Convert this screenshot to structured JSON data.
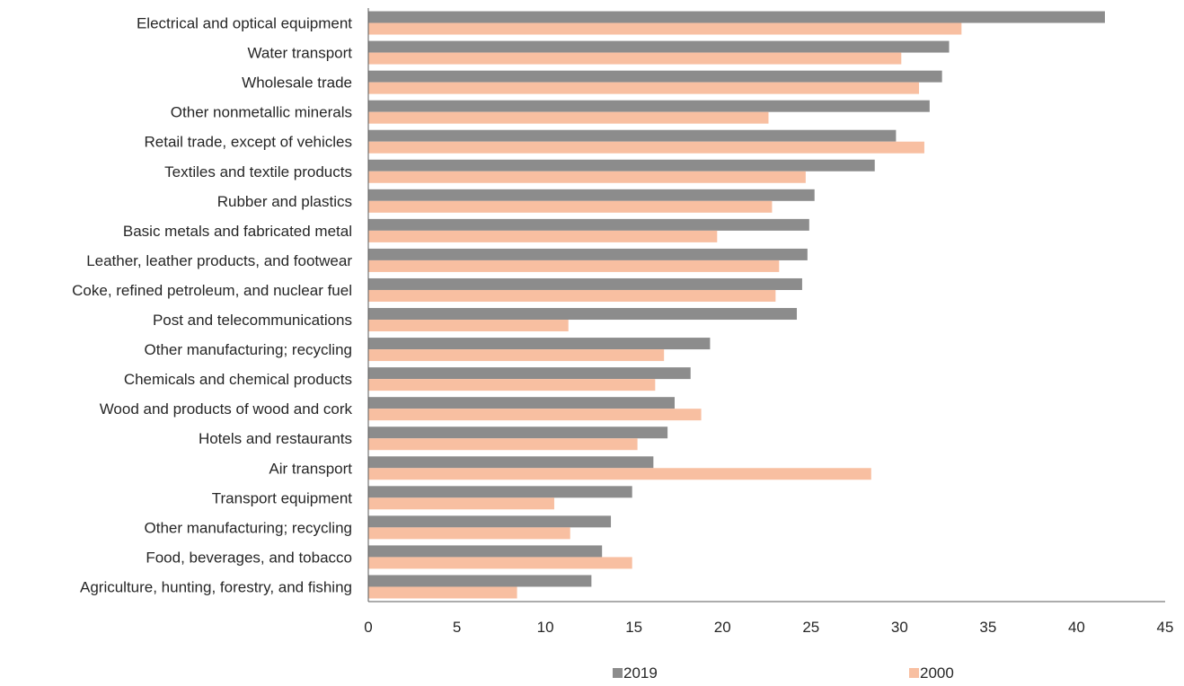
{
  "chart_data": {
    "type": "bar",
    "orientation": "horizontal",
    "categories": [
      "Electrical and optical equipment",
      "Water transport",
      "Wholesale trade",
      "Other nonmetallic minerals",
      "Retail trade, except of vehicles",
      "Textiles and textile products",
      "Rubber and plastics",
      "Basic metals and fabricated metal",
      "Leather, leather products, and footwear",
      "Coke, refined petroleum, and nuclear fuel",
      "Post and telecommunications",
      "Other manufacturing; recycling",
      "Chemicals and chemical products",
      "Wood and products of wood and cork",
      "Hotels and restaurants",
      "Air transport",
      "Transport equipment",
      "Other manufacturing; recycling",
      "Food, beverages, and tobacco",
      "Agriculture, hunting, forestry, and fishing"
    ],
    "series": [
      {
        "name": "2019",
        "color": "#8c8c8c",
        "values": [
          41.6,
          32.8,
          32.4,
          31.7,
          29.8,
          28.6,
          25.2,
          24.9,
          24.8,
          24.5,
          24.2,
          19.3,
          18.2,
          17.3,
          16.9,
          16.1,
          14.9,
          13.7,
          13.2,
          12.6
        ]
      },
      {
        "name": "2000",
        "color": "#f8bfa1",
        "values": [
          33.5,
          30.1,
          31.1,
          22.6,
          31.4,
          24.7,
          22.8,
          19.7,
          23.2,
          23.0,
          11.3,
          16.7,
          16.2,
          18.8,
          15.2,
          28.4,
          10.5,
          11.4,
          14.9,
          8.4
        ]
      }
    ],
    "xlim": [
      0,
      45
    ],
    "xticks": [
      0,
      5,
      10,
      15,
      20,
      25,
      30,
      35,
      40,
      45
    ],
    "title": "",
    "xlabel": "",
    "ylabel": "",
    "grid": false,
    "legend_position": "bottom"
  }
}
